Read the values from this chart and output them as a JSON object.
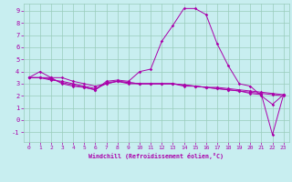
{
  "xlabel": "Windchill (Refroidissement éolien,°C)",
  "bg_color": "#c8eef0",
  "line_color": "#aa00aa",
  "grid_color": "#99ccbb",
  "xlim": [
    -0.5,
    23.5
  ],
  "ylim": [
    -1.8,
    9.6
  ],
  "xticks": [
    0,
    1,
    2,
    3,
    4,
    5,
    6,
    7,
    8,
    9,
    10,
    11,
    12,
    13,
    14,
    15,
    16,
    17,
    18,
    19,
    20,
    21,
    22,
    23
  ],
  "yticks": [
    -1,
    0,
    1,
    2,
    3,
    4,
    5,
    6,
    7,
    8,
    9
  ],
  "lines": [
    [
      3.5,
      4.0,
      3.5,
      3.0,
      2.8,
      2.7,
      2.5,
      3.2,
      3.3,
      3.2,
      4.0,
      4.2,
      6.5,
      7.8,
      9.2,
      9.2,
      8.7,
      6.3,
      4.5,
      3.0,
      2.8,
      2.0,
      1.3,
      2.1
    ],
    [
      3.5,
      3.5,
      3.5,
      3.5,
      3.2,
      3.0,
      2.8,
      3.0,
      3.2,
      3.0,
      3.0,
      3.0,
      3.0,
      3.0,
      2.9,
      2.8,
      2.7,
      2.7,
      2.6,
      2.5,
      2.4,
      2.3,
      2.2,
      2.1
    ],
    [
      3.5,
      3.5,
      3.3,
      3.2,
      3.0,
      2.8,
      2.6,
      3.0,
      3.2,
      3.1,
      3.0,
      3.0,
      3.0,
      3.0,
      2.9,
      2.8,
      2.7,
      2.6,
      2.5,
      2.4,
      2.2,
      2.1,
      -1.2,
      2.1
    ],
    [
      3.5,
      3.5,
      3.4,
      3.1,
      2.9,
      2.7,
      2.5,
      3.1,
      3.2,
      3.1,
      3.0,
      3.0,
      3.0,
      3.0,
      2.8,
      2.8,
      2.7,
      2.6,
      2.5,
      2.4,
      2.3,
      2.2,
      2.1,
      2.0
    ]
  ]
}
